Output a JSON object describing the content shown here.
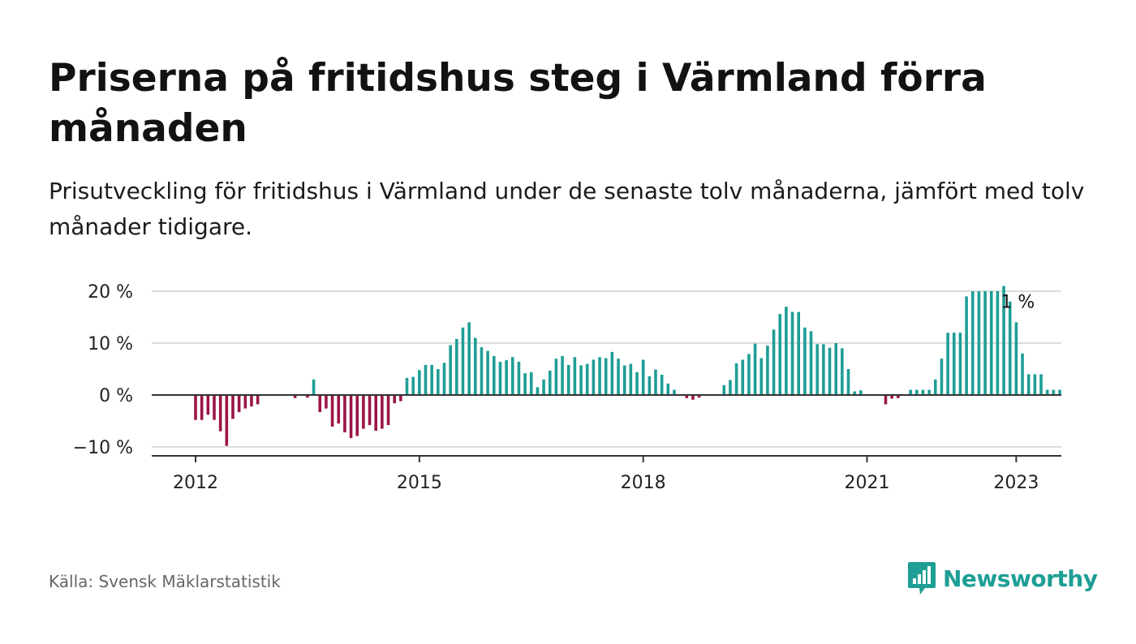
{
  "header": {
    "title": "Priserna på fritidshus steg i Värmland förra månaden",
    "subtitle": "Prisutveckling för fritidshus i Värmland under de senaste tolv månaderna, jämfört med tolv månader tidigare."
  },
  "footer": {
    "source": "Källa: Svensk Mäklarstatistik",
    "brand": "Newsworthy"
  },
  "colors": {
    "positive": "#1e9e95",
    "negative": "#9b1548",
    "axis": "#333333",
    "grid": "#dddddd",
    "brand": "#1e9e95"
  },
  "icons": {
    "logo": "bar-chart-speech-bubble-icon"
  },
  "chart_data": {
    "type": "bar",
    "x_start": "2012-01",
    "frequency": "monthly",
    "xticks": [
      "2012",
      "2015",
      "2018",
      "2021",
      "2023"
    ],
    "yticks": [
      "−10 %",
      "0 %",
      "10 %",
      "20 %"
    ],
    "ytick_values": [
      -10,
      0,
      10,
      20
    ],
    "ylim": [
      -11.5,
      21
    ],
    "grid": "horizontal",
    "annotation": {
      "text": "1 %",
      "index": 132
    },
    "values": [
      -4.8,
      -4.8,
      -3.8,
      -4.8,
      -7,
      -9.8,
      -4.6,
      -3.3,
      -2.6,
      -2.2,
      -1.8,
      0,
      0,
      0,
      0,
      0,
      -0.6,
      0,
      -0.5,
      3,
      -3.3,
      -2.6,
      -6.1,
      -5.5,
      -7.2,
      -8.3,
      -7.9,
      -6.5,
      -5.8,
      -6.9,
      -6.5,
      -5.8,
      -1.6,
      -1.2,
      3.3,
      3.5,
      4.8,
      5.8,
      5.8,
      5,
      6.2,
      9.6,
      10.8,
      13,
      14,
      11,
      9.2,
      8.5,
      7.5,
      6.4,
      6.7,
      7.3,
      6.4,
      4.2,
      4.4,
      1.5,
      3,
      4.7,
      7,
      7.5,
      5.8,
      7.3,
      5.7,
      6,
      6.8,
      7.3,
      7.1,
      8.3,
      7,
      5.7,
      6,
      4.4,
      6.8,
      3.6,
      4.9,
      3.9,
      2.2,
      1,
      0,
      -0.6,
      -0.9,
      -0.5,
      0,
      0,
      0,
      1.9,
      2.9,
      6.1,
      6.8,
      7.9,
      9.9,
      7.1,
      9.5,
      12.6,
      15.6,
      17,
      16,
      16,
      13,
      12.3,
      9.8,
      9.8,
      9.1,
      10,
      9,
      5,
      0.7,
      0.9,
      0,
      0,
      0,
      -1.8,
      -0.7,
      -0.6,
      0,
      1,
      1,
      1,
      1,
      3,
      7,
      12,
      12,
      12,
      19,
      20,
      20,
      20,
      20,
      20,
      21,
      18,
      14,
      8,
      4,
      4,
      4,
      1,
      1,
      1
    ]
  }
}
